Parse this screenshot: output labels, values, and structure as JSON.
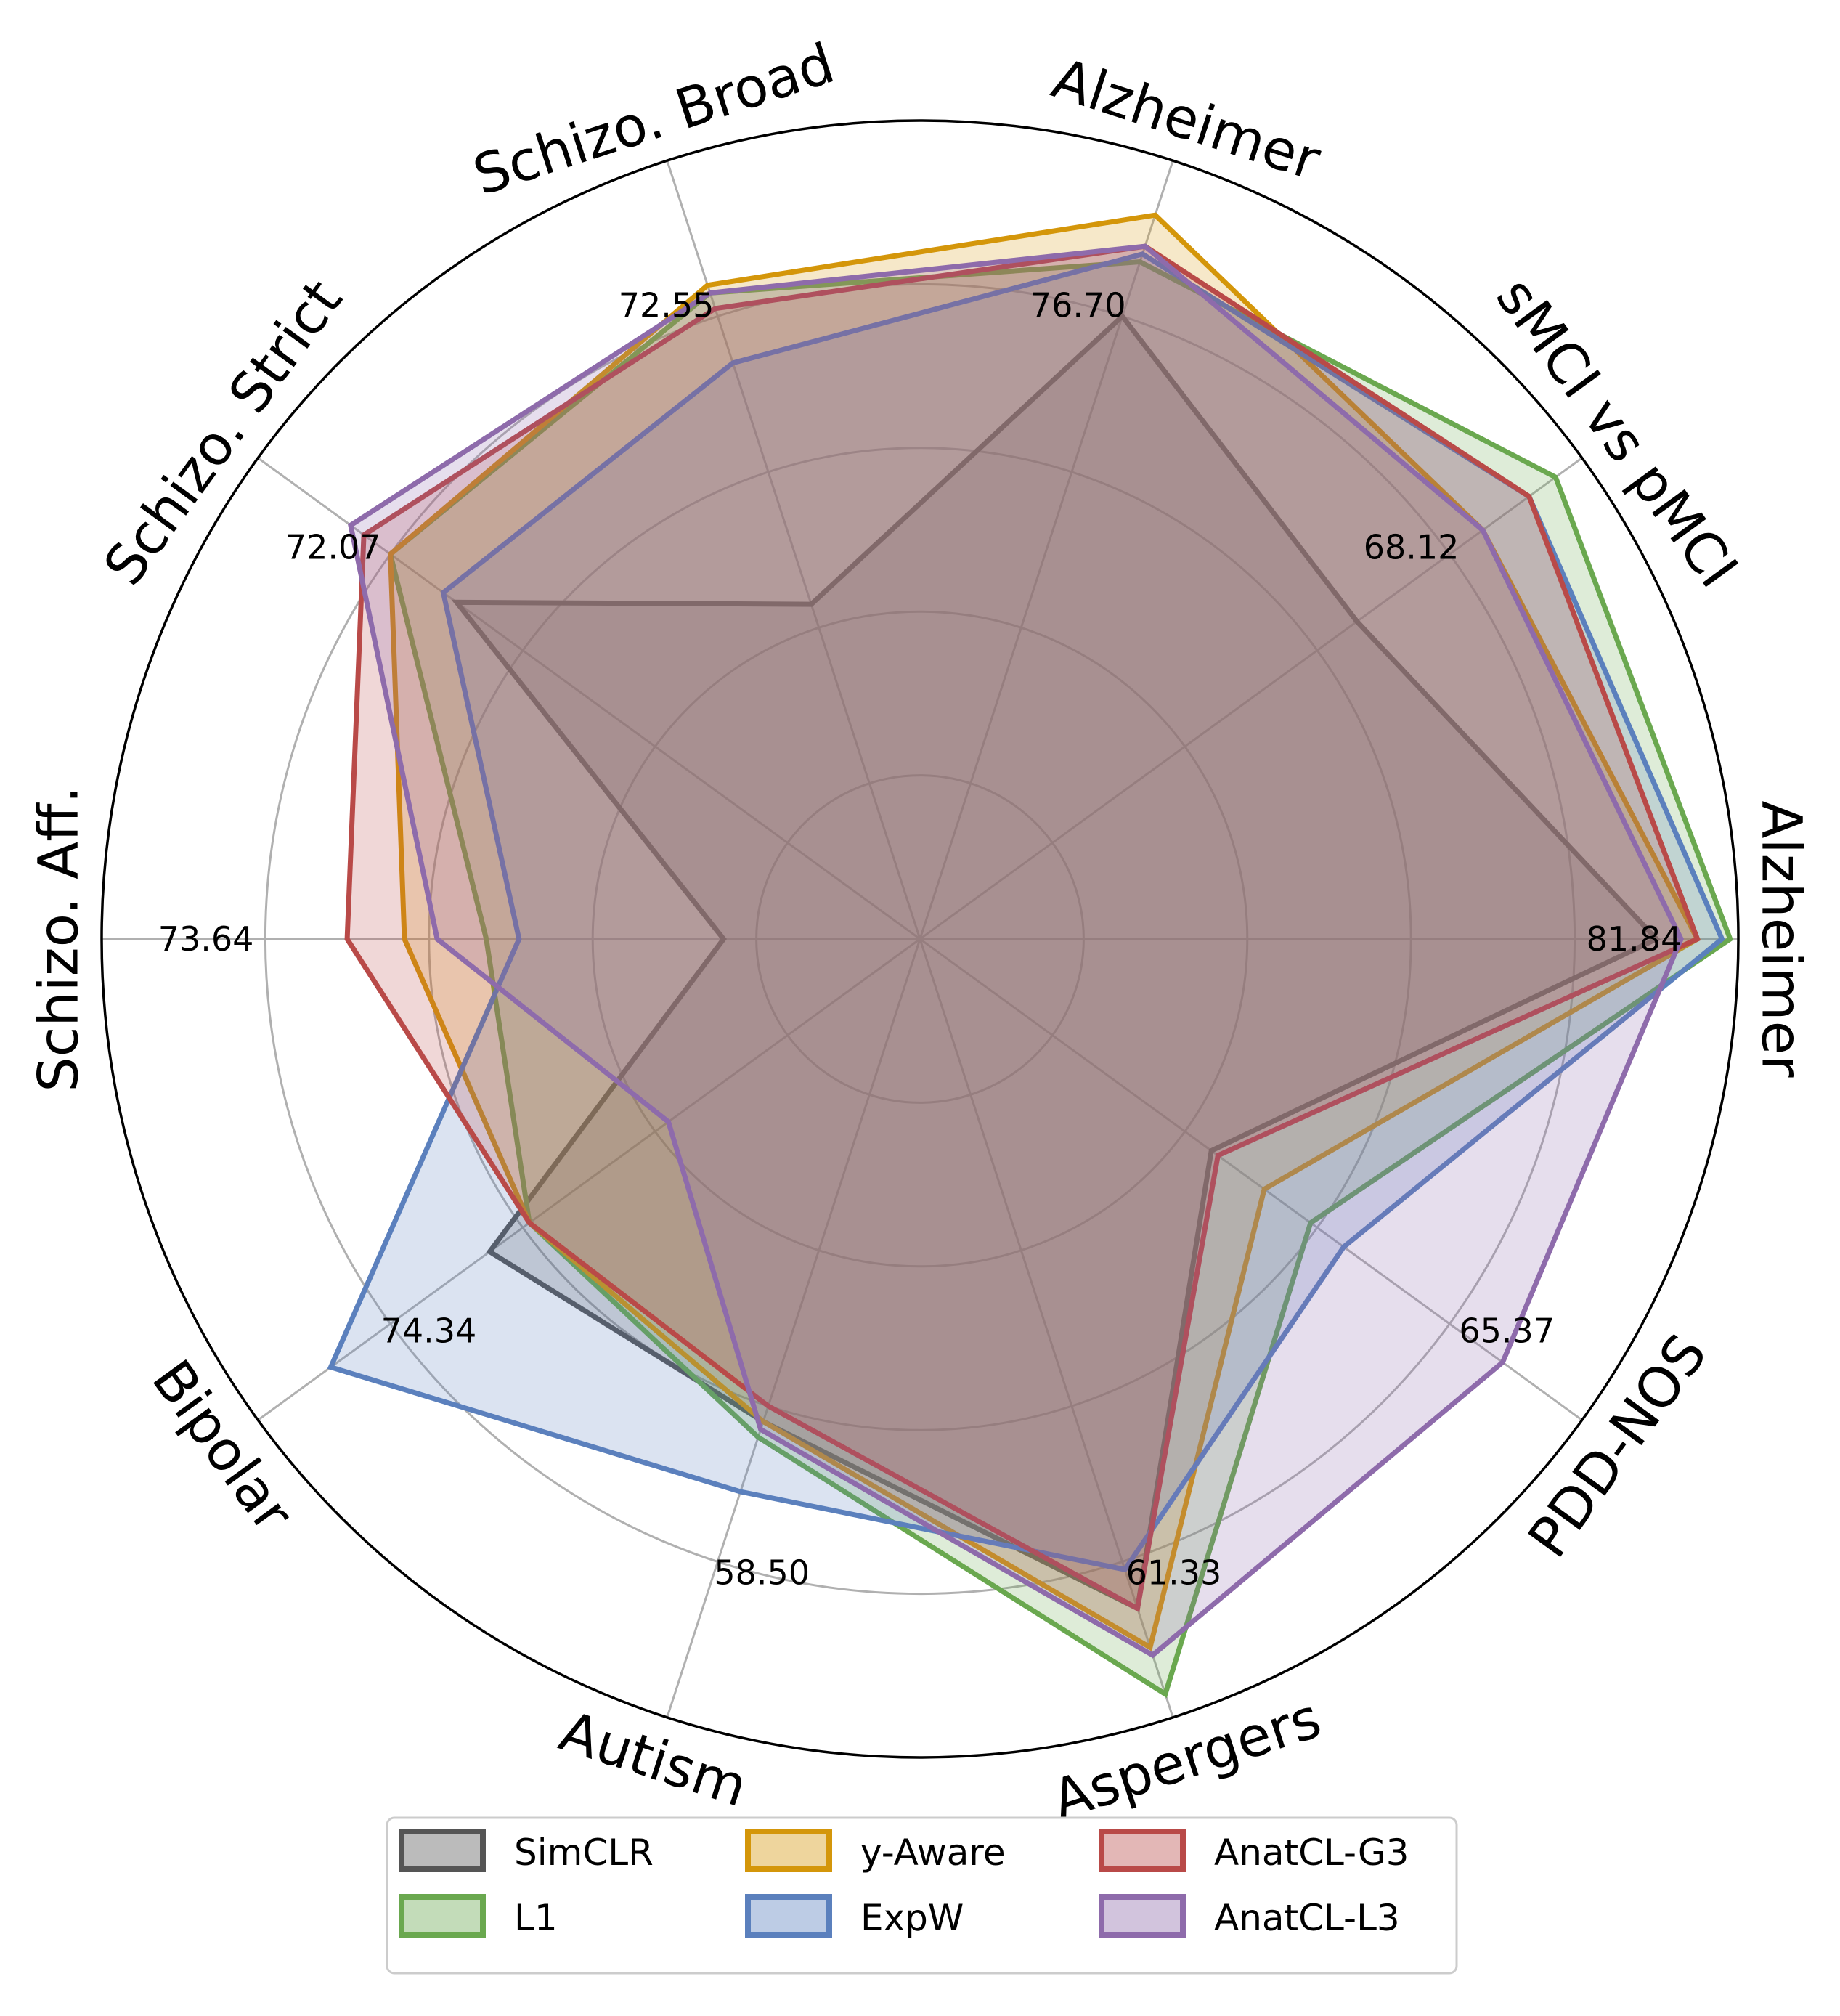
{
  "chart_data": {
    "type": "radar",
    "title": "",
    "axes": [
      {
        "label": "Alzheimer",
        "max_label": "81.84"
      },
      {
        "label": "sMCI vs pMCI",
        "max_label": "68.12"
      },
      {
        "label": "Alzheimer",
        "max_label": "76.70"
      },
      {
        "label": "Schizo. Broad",
        "max_label": "72.55"
      },
      {
        "label": "Schizo. Strict",
        "max_label": "72.07"
      },
      {
        "label": "Schizo. Aff.",
        "max_label": "73.64"
      },
      {
        "label": "Bipolar",
        "max_label": "74.34"
      },
      {
        "label": "Autism",
        "max_label": "58.50"
      },
      {
        "label": "Aspergers",
        "max_label": "61.33"
      },
      {
        "label": "PDD-NOS",
        "max_label": "65.37"
      }
    ],
    "r_range": [
      0,
      1
    ],
    "grid_rings": [
      0.2,
      0.4,
      0.6,
      0.8
    ],
    "grid": true,
    "legend_position": "bottom",
    "legend_columns": 3,
    "series": [
      {
        "name": "SimCLR",
        "color": "#555555",
        "values": [
          0.9,
          0.66,
          0.8,
          0.43,
          0.7,
          0.24,
          0.65,
          0.62,
          0.86,
          0.44
        ]
      },
      {
        "name": "L1",
        "color": "#6aa84f",
        "values": [
          0.99,
          0.96,
          0.87,
          0.83,
          0.8,
          0.53,
          0.59,
          0.64,
          0.97,
          0.59
        ]
      },
      {
        "name": "y-Aware",
        "color": "#d4960a",
        "values": [
          0.95,
          0.85,
          0.93,
          0.84,
          0.8,
          0.63,
          0.59,
          0.62,
          0.91,
          0.52
        ]
      },
      {
        "name": "ExpW",
        "color": "#5b80bd",
        "values": [
          0.98,
          0.92,
          0.88,
          0.74,
          0.72,
          0.49,
          0.89,
          0.71,
          0.81,
          0.64
        ]
      },
      {
        "name": "AnatCL-G3",
        "color": "#b94a48",
        "values": [
          0.95,
          0.92,
          0.89,
          0.81,
          0.84,
          0.7,
          0.59,
          0.6,
          0.86,
          0.45
        ]
      },
      {
        "name": "AnatCL-L3",
        "color": "#8e6bab",
        "values": [
          0.93,
          0.85,
          0.89,
          0.83,
          0.86,
          0.59,
          0.38,
          0.63,
          0.92,
          0.88
        ]
      }
    ]
  }
}
